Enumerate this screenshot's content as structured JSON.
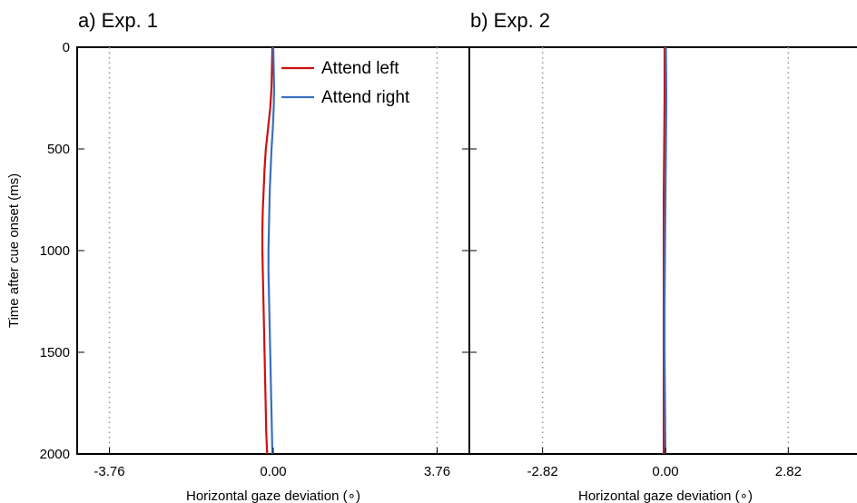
{
  "chart_data": [
    {
      "type": "line",
      "title": "a) Exp. 1",
      "xlabel": "Horizontal gaze deviation (∘)",
      "ylabel": "Time after cue onset (ms)",
      "xlim": [
        -4.5,
        4.5
      ],
      "ylim": [
        0,
        2000
      ],
      "y_inverted": true,
      "xticks": [
        -3.76,
        0.0,
        3.76
      ],
      "xtick_labels": [
        "-3.76",
        "0.00",
        "3.76"
      ],
      "yticks": [
        0,
        500,
        1000,
        1500,
        2000
      ],
      "ytick_labels": [
        "0",
        "500",
        "1000",
        "1500",
        "2000"
      ],
      "vertical_dotted_lines": [
        -3.76,
        3.76
      ],
      "legend": {
        "placement": "top-center"
      },
      "series": [
        {
          "name": "Attend left",
          "color": "#cc1111",
          "x": [
            -0.02,
            -0.04,
            -0.07,
            -0.12,
            -0.17,
            -0.2,
            -0.22,
            -0.24,
            -0.25,
            -0.25,
            -0.24,
            -0.23,
            -0.22,
            -0.21,
            -0.2,
            -0.18,
            -0.16,
            -0.14
          ],
          "y": [
            0,
            200,
            300,
            400,
            500,
            600,
            700,
            800,
            900,
            1000,
            1100,
            1200,
            1300,
            1400,
            1500,
            1700,
            1900,
            2000
          ]
        },
        {
          "name": "Attend right",
          "color": "#3b6fbd",
          "x": [
            0.0,
            0.02,
            0.01,
            -0.01,
            -0.04,
            -0.06,
            -0.08,
            -0.09,
            -0.1,
            -0.11,
            -0.11,
            -0.1,
            -0.09,
            -0.08,
            -0.07,
            -0.05,
            -0.03,
            -0.02
          ],
          "y": [
            0,
            200,
            300,
            400,
            500,
            600,
            700,
            800,
            900,
            1000,
            1100,
            1200,
            1300,
            1400,
            1500,
            1700,
            1900,
            2000
          ]
        }
      ]
    },
    {
      "type": "line",
      "title": "b) Exp. 2",
      "xlabel": "Horizontal gaze deviation (∘)",
      "xlim": [
        -4.5,
        4.5
      ],
      "ylim": [
        0,
        2000
      ],
      "y_inverted": true,
      "xticks": [
        -2.82,
        0.0,
        2.82
      ],
      "xtick_labels": [
        "-2.82",
        "0.00",
        "2.82"
      ],
      "vertical_dotted_lines": [
        -2.82,
        2.82
      ],
      "series": [
        {
          "name": "Attend left",
          "color": "#cc1111",
          "x": [
            -0.02,
            -0.02,
            -0.03,
            -0.04,
            -0.04,
            -0.04,
            -0.04,
            -0.04,
            -0.04
          ],
          "y": [
            0,
            250,
            500,
            750,
            1000,
            1250,
            1500,
            1750,
            2000
          ]
        },
        {
          "name": "Attend right",
          "color": "#3b6fbd",
          "x": [
            0.01,
            0.02,
            0.01,
            0.0,
            -0.01,
            -0.02,
            -0.02,
            -0.01,
            0.0
          ],
          "y": [
            0,
            250,
            500,
            750,
            1000,
            1250,
            1500,
            1750,
            2000
          ]
        }
      ]
    }
  ]
}
